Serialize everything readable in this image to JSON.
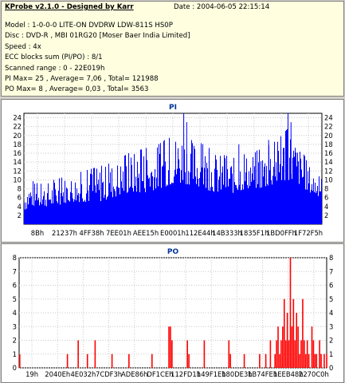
{
  "header": {
    "title": "KProbe v2.1.0 - Designed by Karr",
    "date": "Date : 2004-06-05 22:15:14",
    "lines": [
      "Model : 1-0-0-0 LITE-ON DVDRW LDW-811S   HS0P",
      "Disc : DVD-R , MBI 01RG20   [Moser Baer India Limited]",
      "Speed : 4x",
      "ECC blocks sum (PI/PO) : 8/1",
      "Scanned range : 0 - 22E019h",
      "PI Max= 25 , Average= 7,06 , Total= 121988",
      "PO Max= 8 , Average= 0,03 , Total= 3563"
    ]
  },
  "chart_data": [
    {
      "type": "bar",
      "title": "PI",
      "color": "#0000ff",
      "ylim": [
        0,
        25
      ],
      "yticks": [
        2,
        4,
        6,
        8,
        10,
        12,
        14,
        16,
        18,
        20,
        22,
        24
      ],
      "xticks": [
        "8Bh",
        "21237h",
        "4FF38h",
        "7EE01h",
        "AEE15h",
        "E0001h",
        "112E44h",
        "14B333h",
        "1835F1h",
        "1BD0FFh",
        "1F72F5h"
      ],
      "grid": true,
      "envelope": [
        {
          "x": 0.0,
          "min": 3,
          "max": 9
        },
        {
          "x": 0.02,
          "min": 4,
          "max": 10
        },
        {
          "x": 0.05,
          "min": 4,
          "max": 9
        },
        {
          "x": 0.1,
          "min": 4,
          "max": 10
        },
        {
          "x": 0.15,
          "min": 5,
          "max": 11
        },
        {
          "x": 0.2,
          "min": 5,
          "max": 12
        },
        {
          "x": 0.25,
          "min": 5,
          "max": 13
        },
        {
          "x": 0.3,
          "min": 6,
          "max": 14
        },
        {
          "x": 0.35,
          "min": 7,
          "max": 16
        },
        {
          "x": 0.4,
          "min": 7,
          "max": 17
        },
        {
          "x": 0.45,
          "min": 8,
          "max": 18
        },
        {
          "x": 0.5,
          "min": 9,
          "max": 20
        },
        {
          "x": 0.53,
          "min": 9,
          "max": 22
        },
        {
          "x": 0.55,
          "min": 9,
          "max": 20
        },
        {
          "x": 0.6,
          "min": 8,
          "max": 18
        },
        {
          "x": 0.65,
          "min": 7,
          "max": 16
        },
        {
          "x": 0.7,
          "min": 7,
          "max": 15
        },
        {
          "x": 0.75,
          "min": 8,
          "max": 16
        },
        {
          "x": 0.8,
          "min": 8,
          "max": 17
        },
        {
          "x": 0.85,
          "min": 9,
          "max": 19
        },
        {
          "x": 0.89,
          "min": 10,
          "max": 22
        },
        {
          "x": 0.92,
          "min": 9,
          "max": 18
        },
        {
          "x": 0.96,
          "min": 7,
          "max": 13
        },
        {
          "x": 1.0,
          "min": 6,
          "max": 10
        }
      ],
      "peaks": [
        {
          "x": 0.535,
          "value": 25
        },
        {
          "x": 0.545,
          "value": 23
        },
        {
          "x": 0.885,
          "value": 25
        },
        {
          "x": 0.895,
          "value": 23
        },
        {
          "x": 0.82,
          "value": 19
        },
        {
          "x": 0.47,
          "value": 19
        },
        {
          "x": 0.72,
          "value": 18
        }
      ]
    },
    {
      "type": "bar",
      "title": "PO",
      "color": "#ff0000",
      "ylim": [
        0,
        8
      ],
      "yticks": [
        0,
        1,
        2,
        3,
        4,
        5,
        6,
        7,
        8
      ],
      "xticks": [
        "19h",
        "2040Eh",
        "4E032h",
        "7CDF3h",
        "ADE86h",
        "DF1CEh",
        "112FD1h",
        "149F1Eh",
        "180DE3h",
        "1B74FEh",
        "1EEB48h",
        "2270C0h"
      ],
      "grid": true,
      "spikes": [
        {
          "x": 0.0,
          "value": 1
        },
        {
          "x": 0.155,
          "value": 1
        },
        {
          "x": 0.19,
          "value": 2
        },
        {
          "x": 0.22,
          "value": 1
        },
        {
          "x": 0.245,
          "value": 2
        },
        {
          "x": 0.3,
          "value": 1
        },
        {
          "x": 0.355,
          "value": 1
        },
        {
          "x": 0.43,
          "value": 1
        },
        {
          "x": 0.485,
          "value": 3
        },
        {
          "x": 0.49,
          "value": 3
        },
        {
          "x": 0.495,
          "value": 2
        },
        {
          "x": 0.545,
          "value": 2
        },
        {
          "x": 0.55,
          "value": 1
        },
        {
          "x": 0.6,
          "value": 2
        },
        {
          "x": 0.68,
          "value": 2
        },
        {
          "x": 0.685,
          "value": 1
        },
        {
          "x": 0.73,
          "value": 1
        },
        {
          "x": 0.78,
          "value": 1
        },
        {
          "x": 0.8,
          "value": 1
        },
        {
          "x": 0.815,
          "value": 2
        },
        {
          "x": 0.83,
          "value": 1
        },
        {
          "x": 0.835,
          "value": 2
        },
        {
          "x": 0.84,
          "value": 3
        },
        {
          "x": 0.845,
          "value": 1
        },
        {
          "x": 0.85,
          "value": 2
        },
        {
          "x": 0.855,
          "value": 3
        },
        {
          "x": 0.86,
          "value": 5
        },
        {
          "x": 0.865,
          "value": 2
        },
        {
          "x": 0.87,
          "value": 4
        },
        {
          "x": 0.875,
          "value": 2
        },
        {
          "x": 0.88,
          "value": 8
        },
        {
          "x": 0.885,
          "value": 3
        },
        {
          "x": 0.89,
          "value": 5
        },
        {
          "x": 0.895,
          "value": 2
        },
        {
          "x": 0.9,
          "value": 4
        },
        {
          "x": 0.905,
          "value": 3
        },
        {
          "x": 0.91,
          "value": 1
        },
        {
          "x": 0.915,
          "value": 2
        },
        {
          "x": 0.92,
          "value": 5
        },
        {
          "x": 0.925,
          "value": 2
        },
        {
          "x": 0.93,
          "value": 1
        },
        {
          "x": 0.935,
          "value": 2
        },
        {
          "x": 0.94,
          "value": 1
        },
        {
          "x": 0.95,
          "value": 3
        },
        {
          "x": 0.955,
          "value": 2
        },
        {
          "x": 0.96,
          "value": 1
        },
        {
          "x": 0.965,
          "value": 1
        },
        {
          "x": 0.975,
          "value": 2
        },
        {
          "x": 0.98,
          "value": 1
        },
        {
          "x": 0.99,
          "value": 1
        },
        {
          "x": 0.998,
          "value": 1
        }
      ]
    }
  ]
}
